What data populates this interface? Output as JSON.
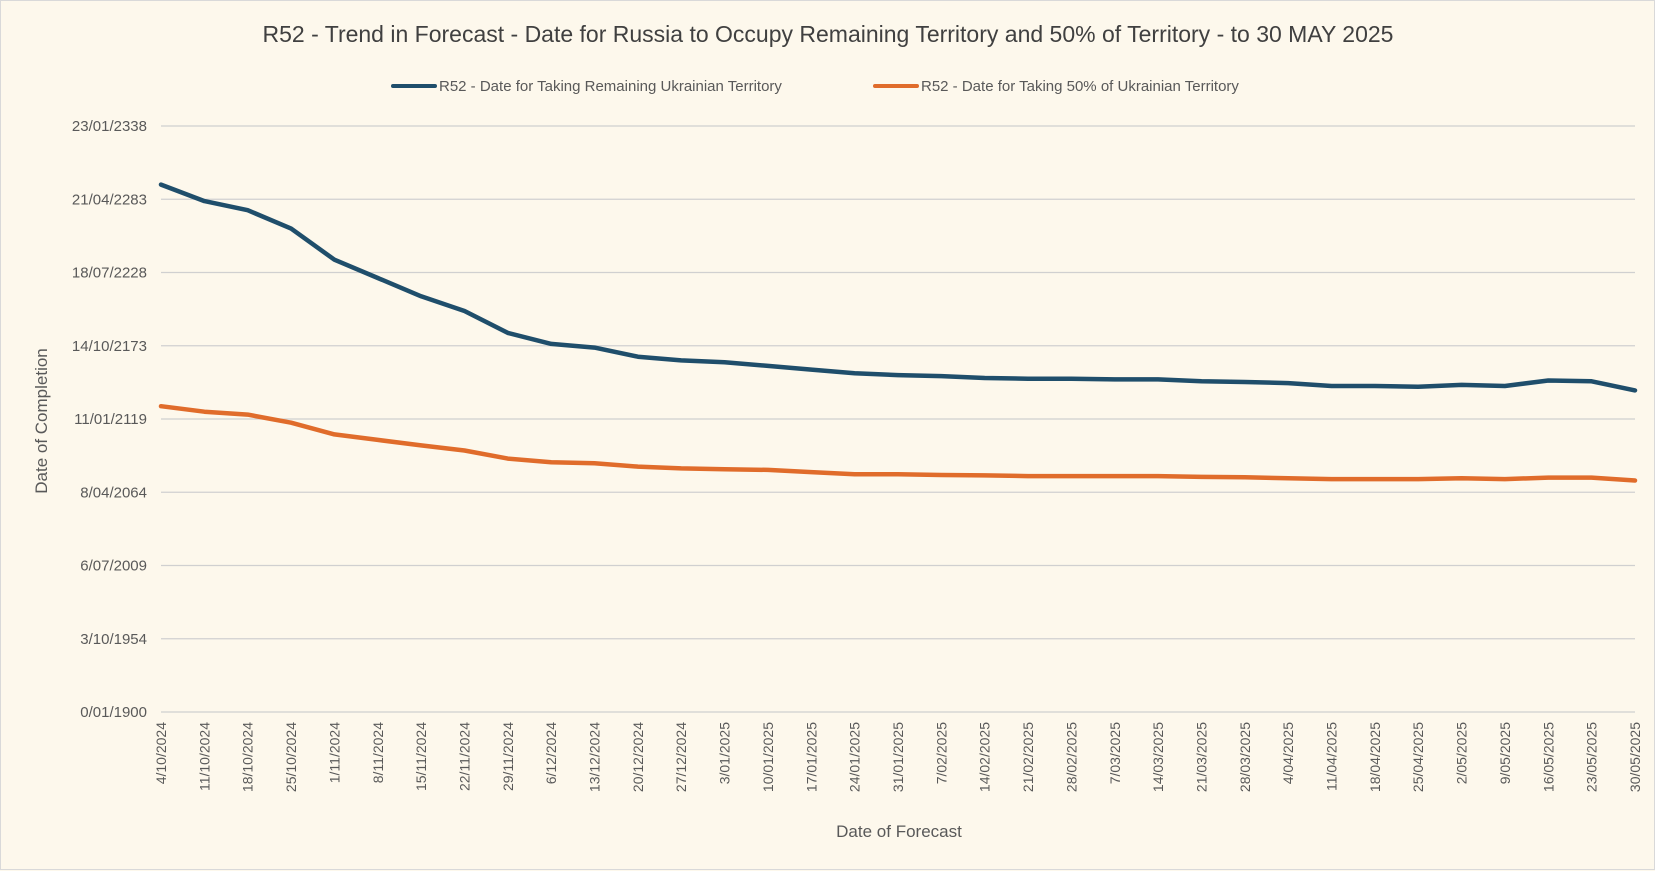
{
  "chart_data": {
    "type": "line",
    "title": "R52 - Trend in Forecast - Date for Russia to Occupy Remaining Territory and 50% of Territory - to 30 MAY 2025",
    "xlabel": "Date of Forecast",
    "ylabel": "Date of Completion",
    "y_tick_labels": [
      "0/01/1900",
      "3/10/1954",
      "6/07/2009",
      "8/04/2064",
      "11/01/2119",
      "14/10/2173",
      "18/07/2228",
      "21/04/2283",
      "23/01/2338"
    ],
    "y_unit": "Excel serial date (days since 0/01/1900)",
    "y_ticks": [
      0,
      20000,
      40000,
      60000,
      80000,
      100000,
      120000,
      140000,
      160000
    ],
    "ylim": [
      0,
      160000
    ],
    "grid": true,
    "legend_position": "top-center",
    "categories": [
      "4/10/2024",
      "11/10/2024",
      "18/10/2024",
      "25/10/2024",
      "1/11/2024",
      "8/11/2024",
      "15/11/2024",
      "22/11/2024",
      "29/11/2024",
      "6/12/2024",
      "13/12/2024",
      "20/12/2024",
      "27/12/2024",
      "3/01/2025",
      "10/01/2025",
      "17/01/2025",
      "24/01/2025",
      "31/01/2025",
      "7/02/2025",
      "14/02/2025",
      "21/02/2025",
      "28/02/2025",
      "7/03/2025",
      "14/03/2025",
      "21/03/2025",
      "28/03/2025",
      "4/04/2025",
      "11/04/2025",
      "18/04/2025",
      "25/04/2025",
      "2/05/2025",
      "9/05/2025",
      "16/05/2025",
      "23/05/2025",
      "30/05/2025"
    ],
    "series": [
      {
        "name": "R52 - Date for Taking Remaining Ukrainian Territory",
        "color": "#1f4e6b",
        "values": [
          144000,
          139500,
          137000,
          132000,
          123500,
          118500,
          113500,
          109500,
          103500,
          100500,
          99500,
          97000,
          96000,
          95500,
          94500,
          93500,
          92500,
          92000,
          91700,
          91200,
          91000,
          91000,
          90800,
          90800,
          90300,
          90100,
          89800,
          89000,
          89000,
          88800,
          89300,
          89000,
          90500,
          90300,
          87800
        ]
      },
      {
        "name": "R52 - Date for Taking  50% of Ukrainian Territory",
        "color": "#e06c2b",
        "values": [
          83500,
          82000,
          81200,
          79000,
          75800,
          74300,
          72800,
          71400,
          69200,
          68200,
          67900,
          67000,
          66500,
          66300,
          66100,
          65500,
          64900,
          64900,
          64700,
          64600,
          64400,
          64400,
          64400,
          64400,
          64200,
          64100,
          63800,
          63600,
          63600,
          63600,
          63800,
          63600,
          64000,
          64000,
          63200
        ]
      }
    ]
  }
}
